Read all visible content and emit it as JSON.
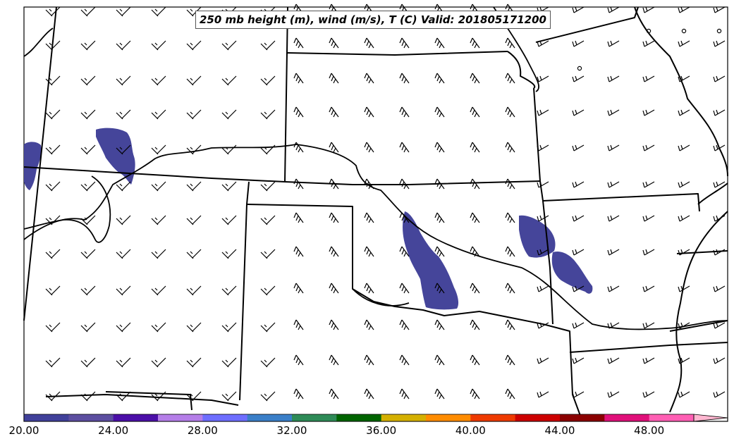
{
  "title": "250 mb height (m), wind (m/s), T (C) Valid: 201805171200",
  "colorbar": {
    "min": 20.0,
    "step": 2.0,
    "colors": [
      "#40409a",
      "#5c4ea0",
      "#4b0fa8",
      "#b57ee8",
      "#6e6eff",
      "#3a7fc8",
      "#2e8b57",
      "#006400",
      "#d4b000",
      "#ff8c00",
      "#ee3a00",
      "#cc0000",
      "#8b0000",
      "#e0107a",
      "#ff5fb4",
      "#ffb6d0"
    ],
    "tick_labels": [
      "20.00",
      "24.00",
      "28.00",
      "32.00",
      "36.00",
      "40.00",
      "44.00",
      "48.00"
    ]
  },
  "temperature_blobs_color": "#45459a"
}
